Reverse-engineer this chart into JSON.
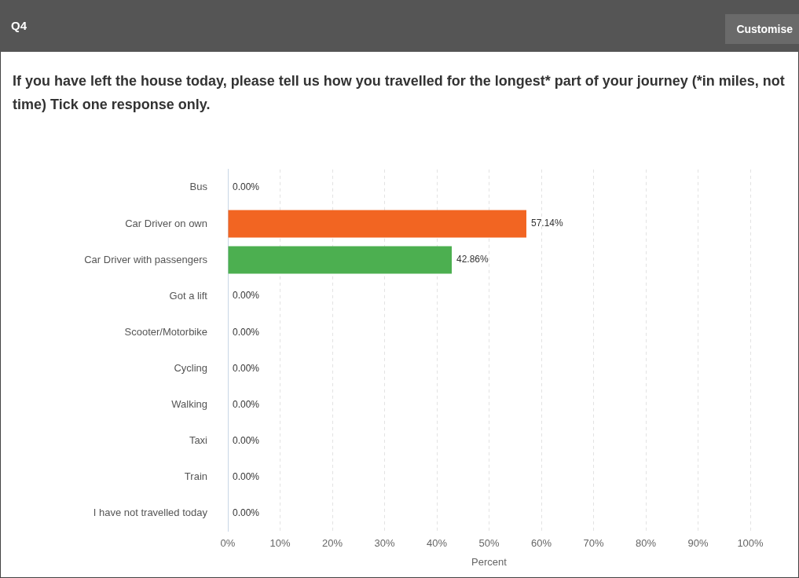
{
  "chart_data": {
    "type": "bar",
    "orientation": "horizontal",
    "title": "If you have left the house today, please tell us how you travelled for the longest* part of your journey (*in miles, not time) Tick one response only.",
    "annotations": [
      "Q4",
      "Customise"
    ],
    "categories": [
      "Bus",
      "Car Driver on own",
      "Car Driver with passengers",
      "Got a lift",
      "Scooter/Motorbike",
      "Cycling",
      "Walking",
      "Taxi",
      "Train",
      "I have not travelled today"
    ],
    "values": [
      0,
      57.14,
      42.86,
      0,
      0,
      0,
      0,
      0,
      0,
      0
    ],
    "colors": [
      "#f26522",
      "#f26522",
      "#4caf50",
      "#4caf50",
      "#4caf50",
      "#4caf50",
      "#4caf50",
      "#4caf50",
      "#4caf50",
      "#4caf50"
    ],
    "value_labels": [
      "0.00%",
      "57.14%",
      "42.86%",
      "0.00%",
      "0.00%",
      "0.00%",
      "0.00%",
      "0.00%",
      "0.00%",
      "0.00%"
    ],
    "xlabel": "Percent",
    "xlim": [
      0,
      100
    ],
    "xticks": [
      {
        "value": 0,
        "label": "0%"
      },
      {
        "value": 10,
        "label": "10%"
      },
      {
        "value": 20,
        "label": "20%"
      },
      {
        "value": 30,
        "label": "30%"
      },
      {
        "value": 40,
        "label": "40%"
      },
      {
        "value": 50,
        "label": "50%"
      },
      {
        "value": 60,
        "label": "60%"
      },
      {
        "value": 70,
        "label": "70%"
      },
      {
        "value": 80,
        "label": "80%"
      },
      {
        "value": 90,
        "label": "90%"
      },
      {
        "value": 100,
        "label": "100%"
      }
    ],
    "grid": "x"
  }
}
